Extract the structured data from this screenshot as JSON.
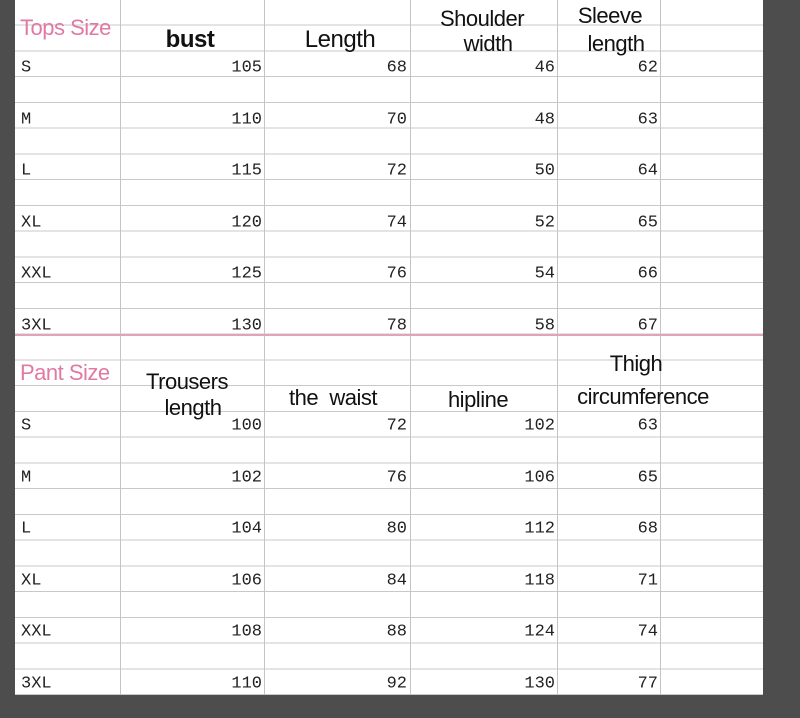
{
  "tops": {
    "label": "Tops Size",
    "headers": {
      "bust": "bust",
      "length": "Length",
      "shoulder_1": "Shoulder",
      "shoulder_2": "width",
      "sleeve_1": "Sleeve",
      "sleeve_2": "length"
    },
    "rows": [
      {
        "size": "S",
        "bust": "105",
        "length": "68",
        "shoulder": "46",
        "sleeve": "62"
      },
      {
        "size": "M",
        "bust": "110",
        "length": "70",
        "shoulder": "48",
        "sleeve": "63"
      },
      {
        "size": "L",
        "bust": "115",
        "length": "72",
        "shoulder": "50",
        "sleeve": "64"
      },
      {
        "size": "XL",
        "bust": "120",
        "length": "74",
        "shoulder": "52",
        "sleeve": "65"
      },
      {
        "size": "XXL",
        "bust": "125",
        "length": "76",
        "shoulder": "54",
        "sleeve": "66"
      },
      {
        "size": "3XL",
        "bust": "130",
        "length": "78",
        "shoulder": "58",
        "sleeve": "67"
      }
    ]
  },
  "pants": {
    "label": "Pant Size",
    "headers": {
      "trousers_1": "Trousers",
      "trousers_2": "length",
      "waist": "the  waist",
      "hipline": "hipline",
      "thigh_1": "Thigh",
      "thigh_2": "circumference"
    },
    "rows": [
      {
        "size": "S",
        "trousers": "100",
        "waist": "72",
        "hipline": "102",
        "thigh": "63"
      },
      {
        "size": "M",
        "trousers": "102",
        "waist": "76",
        "hipline": "106",
        "thigh": "65"
      },
      {
        "size": "L",
        "trousers": "104",
        "waist": "80",
        "hipline": "112",
        "thigh": "68"
      },
      {
        "size": "XL",
        "trousers": "106",
        "waist": "84",
        "hipline": "118",
        "thigh": "71"
      },
      {
        "size": "XXL",
        "trousers": "108",
        "waist": "88",
        "hipline": "124",
        "thigh": "74"
      },
      {
        "size": "3XL",
        "trousers": "110",
        "waist": "92",
        "hipline": "130",
        "thigh": "77"
      }
    ]
  },
  "colors": {
    "accent_pink": "#e07aa3",
    "background": "#4d4d4d"
  }
}
